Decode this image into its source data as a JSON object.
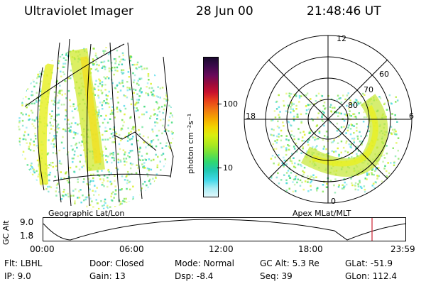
{
  "header": {
    "title": "Ultraviolet Imager",
    "date": "28 Jun 00",
    "time": "21:48:46 UT"
  },
  "left_panel": {
    "caption": "Geographic Lat/Lon"
  },
  "right_panel": {
    "caption": "Apex MLat/MLT",
    "mlt_labels": {
      "top": "12",
      "left": "18",
      "right": "6",
      "bottom": "0"
    },
    "lat_labels": [
      "60",
      "70",
      "80"
    ]
  },
  "colorbar": {
    "unit": "photon cm⁻²s⁻¹",
    "ticks": [
      "100",
      "10"
    ],
    "colors": [
      "#1a0a2e",
      "#3a0a4a",
      "#6a0a5a",
      "#9a0a3a",
      "#c8102e",
      "#e8401a",
      "#f07a10",
      "#f5a800",
      "#f2d400",
      "#d8ee10",
      "#a8e820",
      "#6ee040",
      "#30d870",
      "#20c8b0",
      "#40d8e8",
      "#a8ecf4",
      "#e0f8fc"
    ]
  },
  "gc_alt_plot": {
    "ylabel": "GC Alt",
    "yticks": [
      "9.0",
      "1.8"
    ],
    "xticks": [
      "00:00",
      "06:00",
      "12:00",
      "18:00",
      "23:59"
    ],
    "accent": "#cc2233"
  },
  "status": {
    "filter": {
      "label": "Flt:",
      "value": "LBHL"
    },
    "ip": {
      "label": "IP:",
      "value": "9.0"
    },
    "door": {
      "label": "Door:",
      "value": "Closed"
    },
    "gain": {
      "label": "Gain:",
      "value": "13"
    },
    "mode": {
      "label": "Mode:",
      "value": "Normal"
    },
    "dsp": {
      "label": "Dsp:",
      "value": "-8.4"
    },
    "gc_alt": {
      "label": "GC Alt:",
      "value": "5.3 Re"
    },
    "seq": {
      "label": "Seq:",
      "value": "39"
    },
    "glat": {
      "label": "GLat:",
      "value": "-51.9"
    },
    "glon": {
      "label": "GLon:",
      "value": "112.4"
    }
  }
}
